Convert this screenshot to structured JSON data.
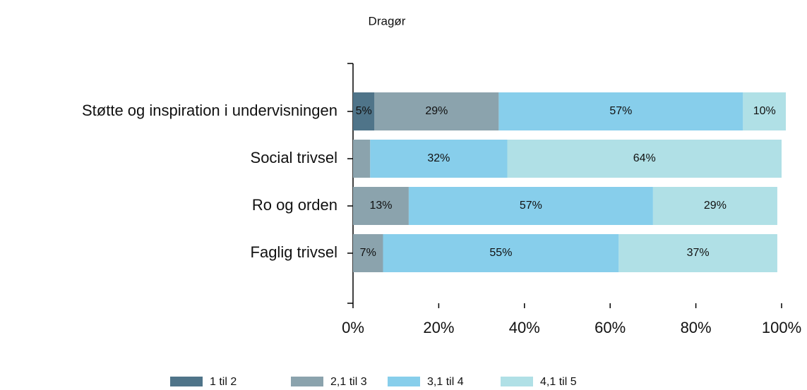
{
  "chart_data": {
    "type": "stacked-bar-horizontal",
    "title": "Dragør",
    "categories": [
      "Støtte og inspiration i undervisningen",
      "Social trivsel",
      "Ro og orden",
      "Faglig trivsel"
    ],
    "series": [
      {
        "name": "1 til 2",
        "color": "#4f7489",
        "values": [
          5,
          0,
          0,
          0
        ],
        "value_labels": [
          "5%",
          null,
          null,
          null
        ]
      },
      {
        "name": "2,1 til 3",
        "color": "#8ba3ad",
        "values": [
          29,
          4,
          13,
          7
        ],
        "value_labels": [
          "29%",
          null,
          "13%",
          "7%"
        ]
      },
      {
        "name": "3,1 til 4",
        "color": "#87ceeb",
        "values": [
          57,
          32,
          57,
          55
        ],
        "value_labels": [
          "57%",
          "32%",
          "57%",
          "55%"
        ]
      },
      {
        "name": "4,1 til 5",
        "color": "#b0e0e6",
        "values": [
          10,
          64,
          29,
          37
        ],
        "value_labels": [
          "10%",
          "64%",
          "29%",
          "37%"
        ]
      }
    ],
    "xlim": [
      0,
      100
    ],
    "xticks": [
      {
        "value": 0,
        "label": "0%"
      },
      {
        "value": 20,
        "label": "20%"
      },
      {
        "value": 40,
        "label": "40%"
      },
      {
        "value": 60,
        "label": "60%"
      },
      {
        "value": 80,
        "label": "80%"
      },
      {
        "value": 100,
        "label": "100%"
      }
    ]
  }
}
